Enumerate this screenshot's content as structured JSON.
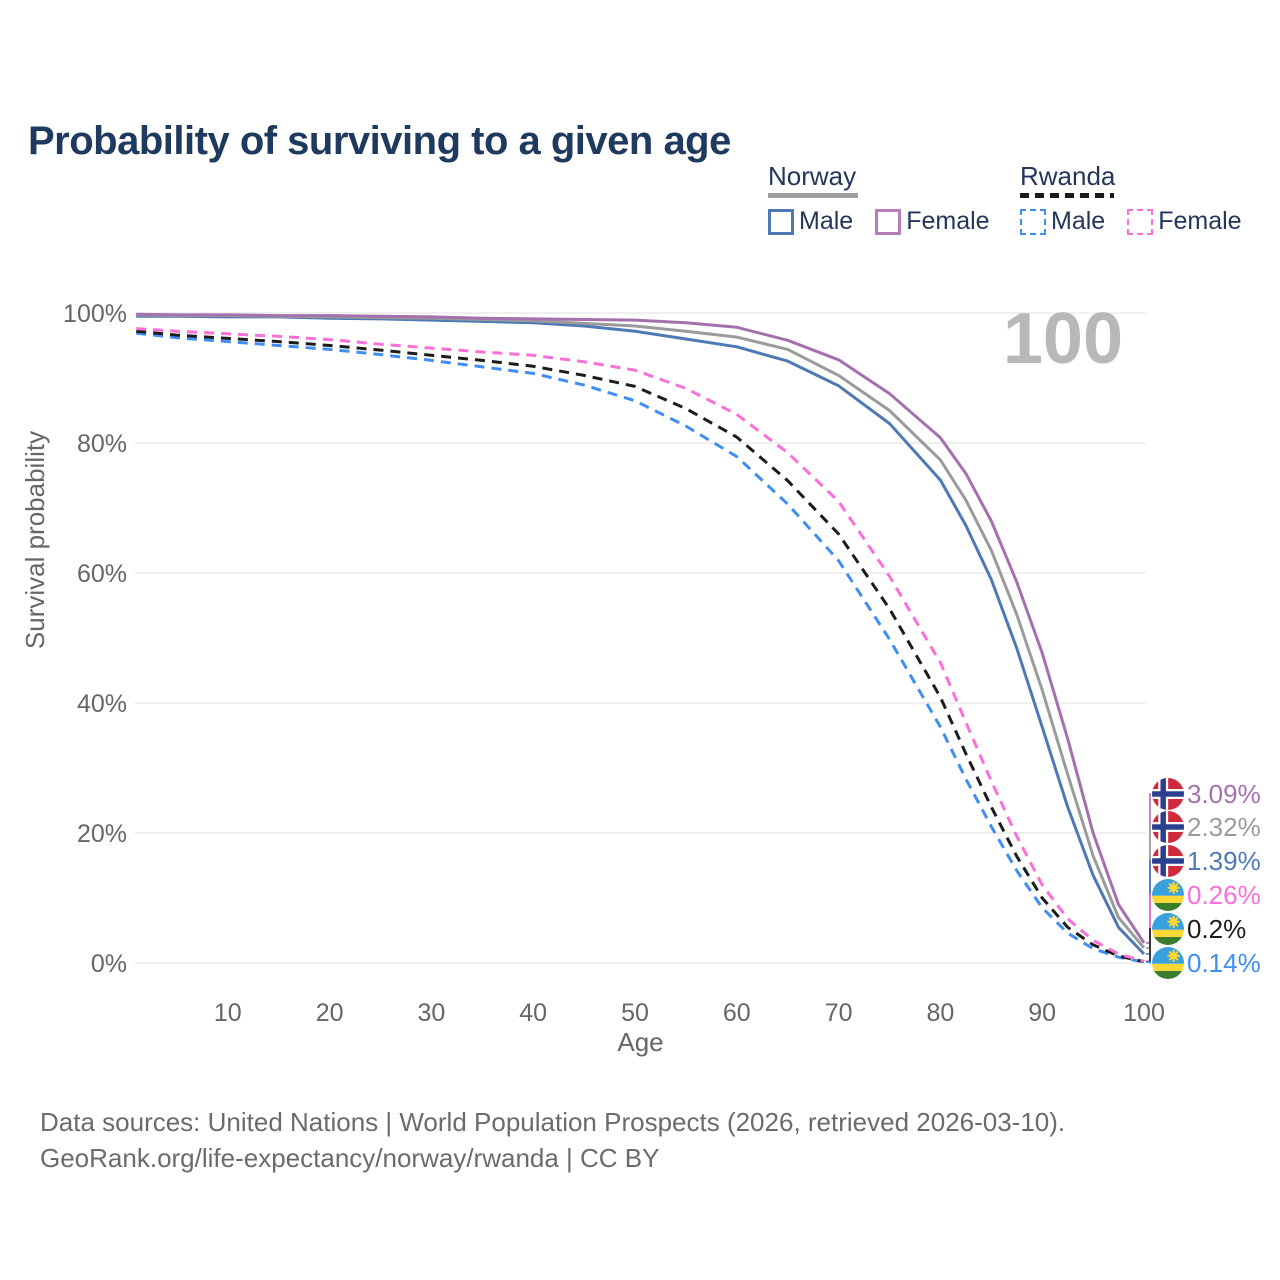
{
  "page": {
    "title": "Probability of surviving to a given age",
    "watermark_age": "100"
  },
  "legend": {
    "groups": [
      {
        "label": "Norway",
        "line_style": "solid",
        "underline_color": "#9e9e9e",
        "items": [
          {
            "label": "Male",
            "color": "#4d79b5"
          },
          {
            "label": "Female",
            "color": "#b77db8"
          }
        ]
      },
      {
        "label": "Rwanda",
        "line_style": "dashed",
        "underline_color": "#1a1a1a",
        "items": [
          {
            "label": "Male",
            "color": "#3f8ef2"
          },
          {
            "label": "Female",
            "color": "#fb6fd8"
          }
        ]
      }
    ]
  },
  "chart_data": {
    "type": "line",
    "title": "Probability of surviving to a given age",
    "xlabel": "Age",
    "ylabel": "Survival probability",
    "xlim": [
      1,
      100
    ],
    "ylim": [
      0,
      100
    ],
    "grid": "horizontal-only",
    "legend_position": "top-right",
    "watermark": "100",
    "xticks": [
      10,
      20,
      30,
      40,
      50,
      60,
      70,
      80,
      90,
      100
    ],
    "yticks": [
      {
        "value": 0,
        "label": "0%"
      },
      {
        "value": 20,
        "label": "20%"
      },
      {
        "value": 40,
        "label": "40%"
      },
      {
        "value": 60,
        "label": "60%"
      },
      {
        "value": 80,
        "label": "80%"
      },
      {
        "value": 100,
        "label": "100%"
      }
    ],
    "x": [
      1,
      5,
      10,
      15,
      20,
      25,
      30,
      35,
      40,
      45,
      50,
      55,
      60,
      65,
      70,
      75,
      80,
      82.5,
      85,
      87.5,
      90,
      92.5,
      95,
      97.5,
      100
    ],
    "series": [
      {
        "id": "norway-male",
        "name": "Norway Male",
        "country": "Norway",
        "sex": "Male",
        "color": "#4d79b5",
        "dash": false,
        "flag": "norway",
        "end_label": "1.39%",
        "end_value": 1.39,
        "values": [
          99.5,
          99.5,
          99.4,
          99.4,
          99.2,
          99.1,
          98.9,
          98.7,
          98.5,
          98.0,
          97.2,
          96.0,
          94.8,
          92.6,
          88.8,
          83.0,
          74.3,
          67.3,
          59.0,
          48.4,
          36.3,
          24.0,
          13.5,
          5.5,
          1.39
        ]
      },
      {
        "id": "norway-all",
        "name": "Norway Both sexes",
        "country": "Norway",
        "sex": "Both",
        "color": "#9b9b9b",
        "dash": false,
        "flag": "norway",
        "end_label": "2.32%",
        "end_value": 2.32,
        "values": [
          99.7,
          99.6,
          99.6,
          99.5,
          99.4,
          99.3,
          99.2,
          99.0,
          98.8,
          98.4,
          98.0,
          97.2,
          96.3,
          94.4,
          90.4,
          85.0,
          77.4,
          71.2,
          63.5,
          53.6,
          42.0,
          29.0,
          16.5,
          7.0,
          2.32
        ]
      },
      {
        "id": "norway-female",
        "name": "Norway Female",
        "country": "Norway",
        "sex": "Female",
        "color": "#a471ae",
        "dash": false,
        "flag": "norway",
        "end_label": "3.09%",
        "end_value": 3.09,
        "values": [
          99.8,
          99.7,
          99.7,
          99.6,
          99.6,
          99.5,
          99.4,
          99.2,
          99.1,
          99.0,
          98.9,
          98.5,
          97.8,
          95.8,
          92.8,
          87.6,
          80.8,
          75.3,
          68.0,
          58.6,
          47.7,
          34.5,
          20.0,
          9.0,
          3.09
        ]
      },
      {
        "id": "rwanda-male",
        "name": "Rwanda Male",
        "country": "Rwanda",
        "sex": "Male",
        "color": "#3f8ef2",
        "dash": true,
        "flag": "rwanda",
        "end_label": "0.14%",
        "end_value": 0.14,
        "values": [
          96.9,
          96.2,
          95.6,
          95.0,
          94.4,
          93.6,
          92.7,
          91.7,
          90.7,
          88.9,
          86.5,
          82.6,
          77.9,
          70.6,
          61.9,
          49.8,
          36.3,
          28.3,
          21.0,
          14.2,
          8.5,
          4.6,
          2.2,
          0.9,
          0.14
        ]
      },
      {
        "id": "rwanda-all",
        "name": "Rwanda Both sexes",
        "country": "Rwanda",
        "sex": "Both",
        "color": "#1c1c1c",
        "dash": true,
        "flag": "rwanda",
        "end_label": "0.2%",
        "end_value": 0.2,
        "values": [
          97.2,
          96.6,
          96.1,
          95.6,
          95.0,
          94.3,
          93.5,
          92.7,
          91.8,
          90.4,
          88.7,
          85.3,
          80.9,
          74.2,
          66.0,
          54.5,
          40.9,
          32.2,
          24.0,
          16.4,
          10.0,
          5.5,
          2.8,
          1.1,
          0.2
        ]
      },
      {
        "id": "rwanda-female",
        "name": "Rwanda Female",
        "country": "Rwanda",
        "sex": "Female",
        "color": "#fb6fd8",
        "dash": true,
        "flag": "rwanda",
        "end_label": "0.26%",
        "end_value": 0.26,
        "values": [
          97.6,
          97.2,
          96.8,
          96.4,
          95.9,
          95.2,
          94.6,
          94.0,
          93.5,
          92.5,
          91.2,
          88.4,
          84.4,
          78.5,
          71.0,
          59.5,
          46.2,
          37.0,
          28.0,
          19.5,
          12.0,
          6.8,
          3.5,
          1.4,
          0.26
        ]
      }
    ]
  },
  "footer": {
    "line1": "Data sources: United Nations | World Population Prospects (2026, retrieved 2026-03-10).",
    "line2": "GeoRank.org/life-expectancy/norway/rwanda | CC BY"
  }
}
